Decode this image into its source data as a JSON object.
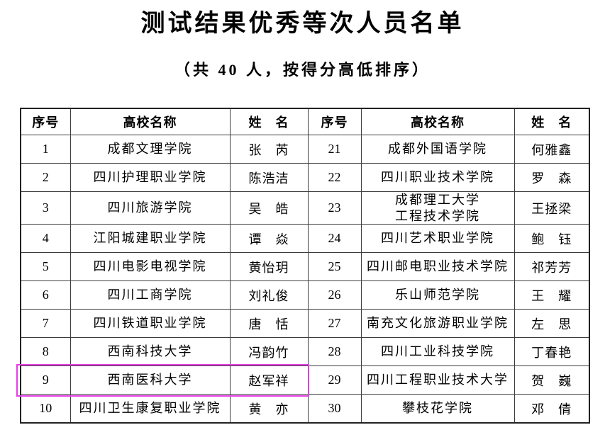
{
  "page": {
    "title": "测试结果优秀等次人员名单",
    "subtitle": "（共 40 人，按得分高低排序）"
  },
  "colors": {
    "text": "#000000",
    "table_border": "#3d3d3d",
    "highlight_border": "#e33fe3",
    "background": "#ffffff"
  },
  "table": {
    "headers": [
      "序号",
      "高校名称",
      "姓　名",
      "序号",
      "高校名称",
      "姓　名"
    ],
    "rows": [
      {
        "left": {
          "no": "1",
          "school": "成都文理学院",
          "name": "张　芮"
        },
        "right": {
          "no": "21",
          "school": "成都外国语学院",
          "name": "何雅鑫"
        }
      },
      {
        "left": {
          "no": "2",
          "school": "四川护理职业学院",
          "name": "陈浩洁"
        },
        "right": {
          "no": "22",
          "school": "四川职业技术学院",
          "name": "罗　森"
        }
      },
      {
        "left": {
          "no": "3",
          "school": "四川旅游学院",
          "name": "吴　皓"
        },
        "right": {
          "no": "23",
          "school": "成都理工大学\n工程技术学院",
          "name": "王拯梁"
        }
      },
      {
        "left": {
          "no": "4",
          "school": "江阳城建职业学院",
          "name": "谭　焱"
        },
        "right": {
          "no": "24",
          "school": "四川艺术职业学院",
          "name": "鲍　钰"
        }
      },
      {
        "left": {
          "no": "5",
          "school": "四川电影电视学院",
          "name": "黄怡玥"
        },
        "right": {
          "no": "25",
          "school": "四川邮电职业技术学院",
          "name": "祁芳芳"
        }
      },
      {
        "left": {
          "no": "6",
          "school": "四川工商学院",
          "name": "刘礼俊"
        },
        "right": {
          "no": "26",
          "school": "乐山师范学院",
          "name": "王　耀"
        }
      },
      {
        "left": {
          "no": "7",
          "school": "四川铁道职业学院",
          "name": "唐　恬"
        },
        "right": {
          "no": "27",
          "school": "南充文化旅游职业学院",
          "name": "左　思"
        }
      },
      {
        "left": {
          "no": "8",
          "school": "西南科技大学",
          "name": "冯韵竹"
        },
        "right": {
          "no": "28",
          "school": "四川工业科技学院",
          "name": "丁春艳"
        }
      },
      {
        "left": {
          "no": "9",
          "school": "西南医科大学",
          "name": "赵军祥"
        },
        "right": {
          "no": "29",
          "school": "四川工程职业技术大学",
          "name": "贺　巍"
        }
      },
      {
        "left": {
          "no": "10",
          "school": "四川卫生康复职业学院",
          "name": "黄　亦"
        },
        "right": {
          "no": "30",
          "school": "攀枝花学院",
          "name": "邓　倩"
        }
      }
    ],
    "highlighted_row_no": "9"
  }
}
